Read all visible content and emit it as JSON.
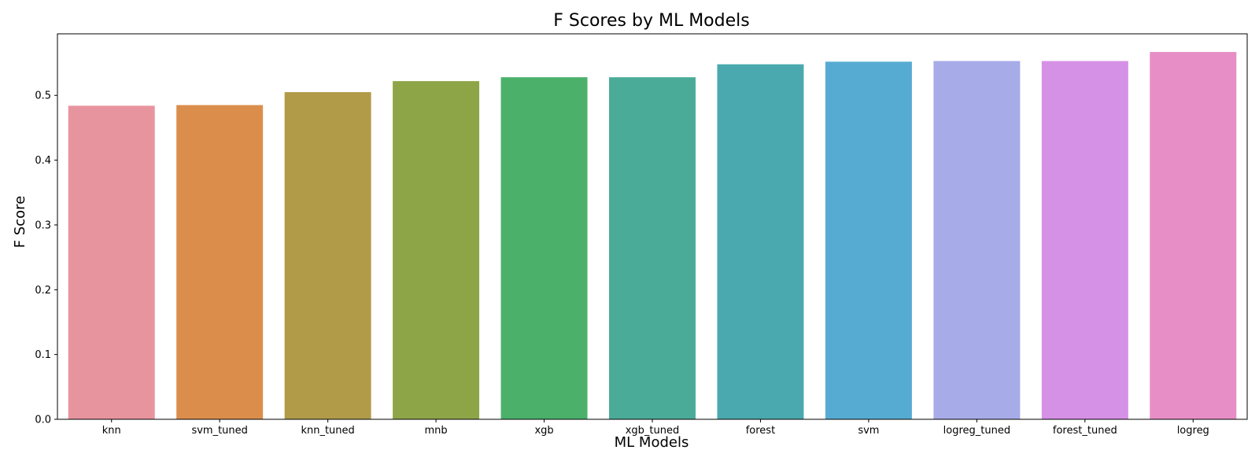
{
  "chart_data": {
    "type": "bar",
    "title": "F Scores by ML Models",
    "xlabel": "ML Models",
    "ylabel": "F Score",
    "categories": [
      "knn",
      "svm_tuned",
      "knn_tuned",
      "mnb",
      "xgb",
      "xgb_tuned",
      "forest",
      "svm",
      "logreg_tuned",
      "forest_tuned",
      "logreg"
    ],
    "values": [
      0.484,
      0.485,
      0.505,
      0.522,
      0.528,
      0.528,
      0.548,
      0.552,
      0.553,
      0.553,
      0.567
    ],
    "colors": [
      "#e8949f",
      "#db8e4c",
      "#b19b48",
      "#8ea547",
      "#4ab06a",
      "#4aab98",
      "#4aa9ae",
      "#55abd1",
      "#a7abe8",
      "#d591e5",
      "#e88ec6"
    ],
    "ylim": [
      0,
      0.595
    ],
    "yticks": [
      0.0,
      0.1,
      0.2,
      0.3,
      0.4,
      0.5
    ],
    "ytick_labels": [
      "0.0",
      "0.1",
      "0.2",
      "0.3",
      "0.4",
      "0.5"
    ],
    "grid": false,
    "legend": "none"
  }
}
